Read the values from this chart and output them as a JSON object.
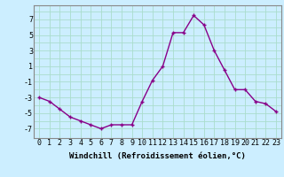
{
  "x": [
    0,
    1,
    2,
    3,
    4,
    5,
    6,
    7,
    8,
    9,
    10,
    11,
    12,
    13,
    14,
    15,
    16,
    17,
    18,
    19,
    20,
    21,
    22,
    23
  ],
  "y": [
    -3,
    -3.5,
    -4.5,
    -5.5,
    -6,
    -6.5,
    -7,
    -6.5,
    -6.5,
    -6.5,
    -3.5,
    -0.8,
    1,
    5.3,
    5.3,
    7.5,
    6.3,
    3,
    0.5,
    -2,
    -2,
    -3.5,
    -3.8,
    -4.8
  ],
  "line_color": "#880088",
  "marker_color": "#880088",
  "bg_color": "#cceeff",
  "grid_color": "#aaddcc",
  "xlabel": "Windchill (Refroidissement éolien,°C)",
  "yticks": [
    -7,
    -5,
    -3,
    -1,
    1,
    3,
    5,
    7
  ],
  "xticks": [
    0,
    1,
    2,
    3,
    4,
    5,
    6,
    7,
    8,
    9,
    10,
    11,
    12,
    13,
    14,
    15,
    16,
    17,
    18,
    19,
    20,
    21,
    22,
    23
  ],
  "ylim": [
    -8.2,
    8.8
  ],
  "xlim": [
    -0.5,
    23.5
  ],
  "xlabel_fontsize": 6.5,
  "tick_fontsize": 6,
  "line_width": 1.0,
  "marker_size": 2.5
}
